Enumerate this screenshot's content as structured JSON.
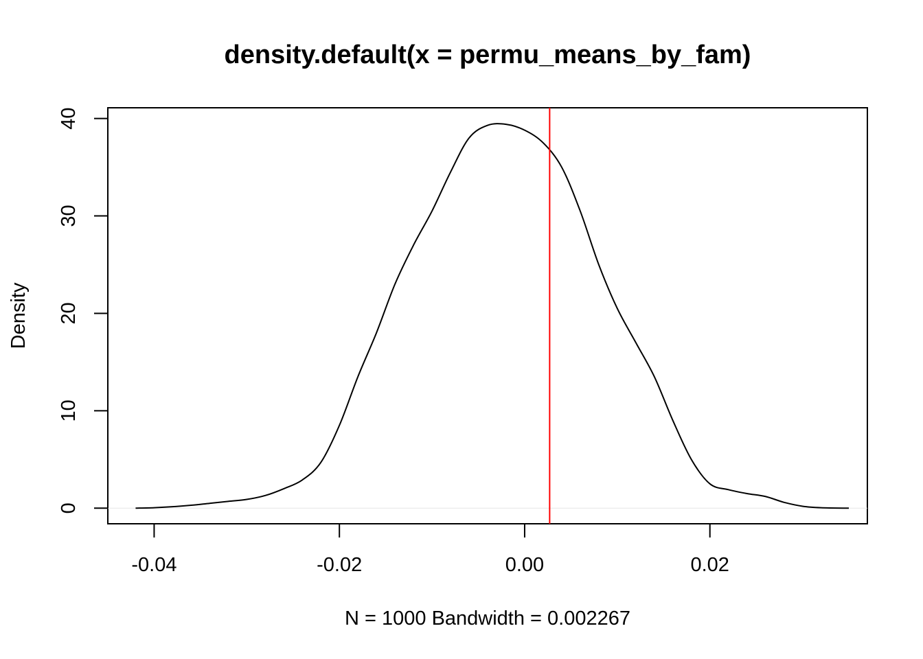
{
  "chart_data": {
    "type": "line",
    "title": "density.default(x = permu_means_by_fam)",
    "xlabel": "N = 1000   Bandwidth = 0.002267",
    "ylabel": "Density",
    "xlim": [
      -0.045,
      0.037
    ],
    "ylim": [
      -1.6,
      41.1
    ],
    "x_ticks": [
      -0.04,
      -0.02,
      0.0,
      0.02
    ],
    "x_tick_labels": [
      "-0.04",
      "-0.02",
      "0.00",
      "0.02"
    ],
    "y_ticks": [
      0,
      10,
      20,
      30,
      40
    ],
    "y_tick_labels": [
      "0",
      "10",
      "20",
      "30",
      "40"
    ],
    "grid": false,
    "series": [
      {
        "color": "#000000",
        "x": [
          -0.042,
          -0.04,
          -0.038,
          -0.036,
          -0.034,
          -0.032,
          -0.03,
          -0.028,
          -0.026,
          -0.024,
          -0.022,
          -0.02,
          -0.018,
          -0.016,
          -0.014,
          -0.012,
          -0.01,
          -0.008,
          -0.006,
          -0.004,
          -0.002,
          0.0,
          0.002,
          0.004,
          0.006,
          0.008,
          0.01,
          0.012,
          0.014,
          0.016,
          0.018,
          0.02,
          0.022,
          0.024,
          0.026,
          0.028,
          0.03,
          0.032,
          0.035
        ],
        "y": [
          0.0,
          0.05,
          0.15,
          0.3,
          0.5,
          0.7,
          0.9,
          1.3,
          2.0,
          2.9,
          4.7,
          8.5,
          13.5,
          18.0,
          23.0,
          27.0,
          30.5,
          34.5,
          38.0,
          39.3,
          39.4,
          38.8,
          37.5,
          35.0,
          30.5,
          25.0,
          20.5,
          17.0,
          13.5,
          9.0,
          5.0,
          2.5,
          1.9,
          1.5,
          1.2,
          0.6,
          0.2,
          0.05,
          0.0
        ]
      }
    ],
    "vline": {
      "x": 0.0027,
      "color": "#ff0000"
    },
    "baseline": {
      "y": 0,
      "color": "#e6e6e6"
    }
  }
}
